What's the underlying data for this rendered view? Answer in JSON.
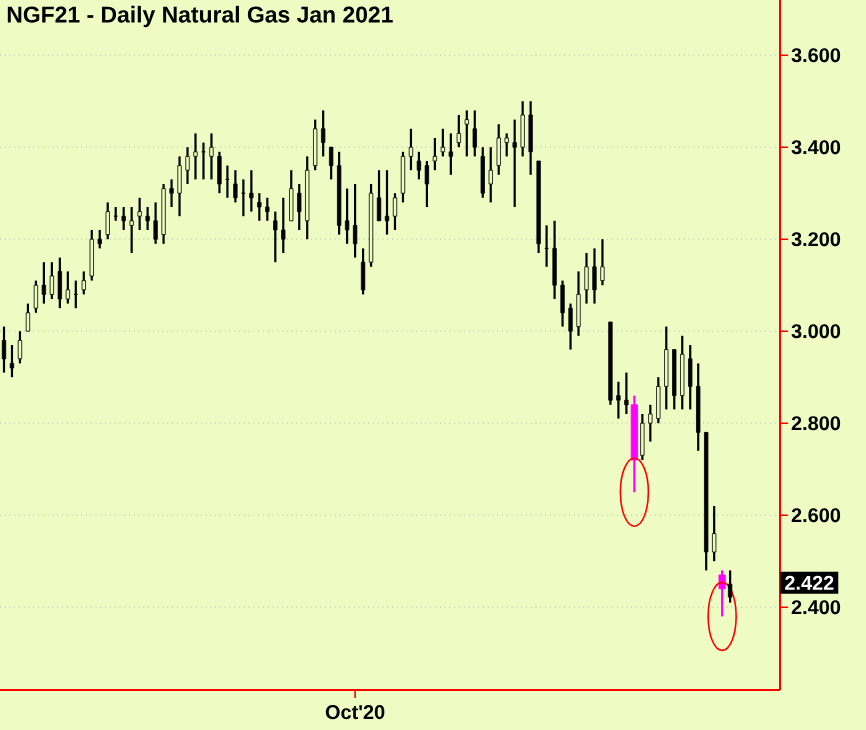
{
  "chart_data": {
    "type": "candlestick",
    "title": "NGF21 - Daily  Natural Gas Jan 2021",
    "categories": [
      null,
      null,
      null,
      null,
      null,
      null,
      null,
      null,
      null,
      null,
      null,
      null,
      null,
      null,
      null,
      null,
      null,
      null,
      null,
      null,
      null,
      null,
      null,
      null,
      null,
      null,
      null,
      null,
      null,
      null,
      null,
      null,
      null,
      null,
      null,
      null,
      null,
      null,
      null,
      null,
      null,
      null,
      null,
      null,
      "Oct'20",
      null,
      null,
      null,
      null,
      null,
      null,
      null,
      null,
      null,
      null,
      null,
      null,
      null,
      null,
      null,
      null,
      null,
      null,
      null,
      null,
      null,
      null,
      null,
      null,
      null,
      null,
      null,
      null,
      null,
      null,
      null,
      null,
      null,
      null,
      null,
      null,
      null,
      null,
      null,
      null,
      null,
      null,
      null,
      null,
      null,
      null,
      null
    ],
    "ohlc": [
      [
        2.98,
        3.01,
        2.91,
        2.94
      ],
      [
        2.93,
        2.97,
        2.9,
        2.92
      ],
      [
        2.94,
        3.0,
        2.93,
        2.98
      ],
      [
        3.0,
        3.06,
        3.0,
        3.04
      ],
      [
        3.05,
        3.11,
        3.04,
        3.1
      ],
      [
        3.1,
        3.15,
        3.06,
        3.08
      ],
      [
        3.08,
        3.15,
        3.07,
        3.12
      ],
      [
        3.13,
        3.16,
        3.05,
        3.07
      ],
      [
        3.07,
        3.13,
        3.06,
        3.09
      ],
      [
        3.08,
        3.11,
        3.05,
        3.08
      ],
      [
        3.09,
        3.13,
        3.08,
        3.11
      ],
      [
        3.12,
        3.22,
        3.11,
        3.2
      ],
      [
        3.2,
        3.22,
        3.18,
        3.19
      ],
      [
        3.21,
        3.28,
        3.2,
        3.26
      ],
      [
        3.25,
        3.27,
        3.24,
        3.25
      ],
      [
        3.25,
        3.27,
        3.22,
        3.24
      ],
      [
        3.23,
        3.27,
        3.17,
        3.24
      ],
      [
        3.25,
        3.29,
        3.22,
        3.26
      ],
      [
        3.25,
        3.27,
        3.22,
        3.24
      ],
      [
        3.24,
        3.28,
        3.19,
        3.2
      ],
      [
        3.21,
        3.32,
        3.19,
        3.31
      ],
      [
        3.31,
        3.33,
        3.27,
        3.3
      ],
      [
        3.3,
        3.38,
        3.25,
        3.36
      ],
      [
        3.35,
        3.4,
        3.32,
        3.38
      ],
      [
        3.38,
        3.43,
        3.33,
        3.39
      ],
      [
        3.39,
        3.41,
        3.33,
        3.39
      ],
      [
        3.38,
        3.43,
        3.33,
        3.4
      ],
      [
        3.38,
        3.39,
        3.3,
        3.32
      ],
      [
        3.33,
        3.36,
        3.29,
        3.33
      ],
      [
        3.32,
        3.35,
        3.28,
        3.29
      ],
      [
        3.3,
        3.33,
        3.25,
        3.3
      ],
      [
        3.3,
        3.35,
        3.26,
        3.29
      ],
      [
        3.28,
        3.3,
        3.24,
        3.27
      ],
      [
        3.27,
        3.29,
        3.24,
        3.26
      ],
      [
        3.24,
        3.26,
        3.15,
        3.22
      ],
      [
        3.22,
        3.29,
        3.17,
        3.2
      ],
      [
        3.24,
        3.35,
        3.24,
        3.31
      ],
      [
        3.3,
        3.32,
        3.22,
        3.26
      ],
      [
        3.24,
        3.38,
        3.2,
        3.35
      ],
      [
        3.36,
        3.46,
        3.35,
        3.44
      ],
      [
        3.44,
        3.48,
        3.38,
        3.41
      ],
      [
        3.4,
        3.4,
        3.33,
        3.36
      ],
      [
        3.36,
        3.39,
        3.21,
        3.23
      ],
      [
        3.24,
        3.31,
        3.19,
        3.22
      ],
      [
        3.23,
        3.32,
        3.16,
        3.19
      ],
      [
        3.15,
        3.18,
        3.08,
        3.09
      ],
      [
        3.15,
        3.32,
        3.14,
        3.3
      ],
      [
        3.29,
        3.35,
        3.24,
        3.24
      ],
      [
        3.25,
        3.35,
        3.21,
        3.24
      ],
      [
        3.25,
        3.3,
        3.22,
        3.29
      ],
      [
        3.3,
        3.39,
        3.28,
        3.38
      ],
      [
        3.38,
        3.44,
        3.35,
        3.4
      ],
      [
        3.37,
        3.39,
        3.33,
        3.35
      ],
      [
        3.36,
        3.37,
        3.27,
        3.32
      ],
      [
        3.37,
        3.42,
        3.35,
        3.38
      ],
      [
        3.39,
        3.44,
        3.38,
        3.4
      ],
      [
        3.39,
        3.43,
        3.34,
        3.38
      ],
      [
        3.41,
        3.47,
        3.4,
        3.43
      ],
      [
        3.45,
        3.48,
        3.38,
        3.46
      ],
      [
        3.44,
        3.48,
        3.38,
        3.4
      ],
      [
        3.38,
        3.4,
        3.29,
        3.3
      ],
      [
        3.32,
        3.4,
        3.28,
        3.35
      ],
      [
        3.36,
        3.45,
        3.34,
        3.42
      ],
      [
        3.41,
        3.43,
        3.38,
        3.42
      ],
      [
        3.41,
        3.46,
        3.27,
        3.4
      ],
      [
        3.4,
        3.5,
        3.38,
        3.47
      ],
      [
        3.47,
        3.5,
        3.34,
        3.39
      ],
      [
        3.37,
        3.37,
        3.17,
        3.19
      ],
      [
        3.18,
        3.23,
        3.14,
        3.18
      ],
      [
        3.18,
        3.24,
        3.07,
        3.1
      ],
      [
        3.1,
        3.11,
        3.01,
        3.04
      ],
      [
        3.05,
        3.06,
        2.96,
        3.0
      ],
      [
        3.01,
        3.13,
        2.99,
        3.08
      ],
      [
        3.09,
        3.17,
        3.06,
        3.14
      ],
      [
        3.14,
        3.18,
        3.06,
        3.09
      ],
      [
        3.11,
        3.2,
        3.1,
        3.14
      ],
      [
        3.02,
        3.02,
        2.84,
        2.85
      ],
      [
        2.86,
        2.89,
        2.81,
        2.85
      ],
      [
        2.85,
        2.91,
        2.82,
        2.84
      ],
      [
        2.84,
        2.86,
        2.65,
        2.72
      ],
      [
        2.73,
        2.82,
        2.72,
        2.8
      ],
      [
        2.8,
        2.84,
        2.76,
        2.82
      ],
      [
        2.81,
        2.9,
        2.8,
        2.88
      ],
      [
        2.88,
        3.01,
        2.83,
        2.96
      ],
      [
        2.96,
        2.96,
        2.83,
        2.86
      ],
      [
        2.86,
        2.99,
        2.83,
        2.95
      ],
      [
        2.94,
        2.97,
        2.83,
        2.88
      ],
      [
        2.88,
        2.93,
        2.74,
        2.78
      ],
      [
        2.78,
        2.78,
        2.48,
        2.52
      ],
      [
        2.52,
        2.62,
        2.5,
        2.56
      ],
      [
        2.47,
        2.48,
        2.38,
        2.44
      ],
      [
        2.45,
        2.48,
        2.41,
        2.422
      ]
    ],
    "colors": [
      "#000000",
      "#000000",
      "#000000",
      "#000000",
      "#000000",
      "#000000",
      "#000000",
      "#000000",
      "#000000",
      "#000000",
      "#000000",
      "#000000",
      "#000000",
      "#000000",
      "#000000",
      "#000000",
      "#000000",
      "#000000",
      "#000000",
      "#000000",
      "#000000",
      "#000000",
      "#000000",
      "#000000",
      "#000000",
      "#000000",
      "#000000",
      "#000000",
      "#000000",
      "#000000",
      "#000000",
      "#000000",
      "#000000",
      "#000000",
      "#000000",
      "#000000",
      "#000000",
      "#000000",
      "#000000",
      "#000000",
      "#000000",
      "#000000",
      "#000000",
      "#000000",
      "#000000",
      "#000000",
      "#000000",
      "#000000",
      "#000000",
      "#000000",
      "#000000",
      "#000000",
      "#000000",
      "#000000",
      "#000000",
      "#000000",
      "#000000",
      "#000000",
      "#000000",
      "#000000",
      "#000000",
      "#000000",
      "#000000",
      "#000000",
      "#000000",
      "#000000",
      "#000000",
      "#000000",
      "#000000",
      "#000000",
      "#000000",
      "#000000",
      "#000000",
      "#000000",
      "#000000",
      "#000000",
      "#000000",
      "#000000",
      "#000000",
      "#ff00ff",
      "#000000",
      "#000000",
      "#000000",
      "#000000",
      "#000000",
      "#000000",
      "#000000",
      "#000000",
      "#000000",
      "#000000",
      "#ff00ff",
      "#000000"
    ],
    "ylim": [
      2.22,
      3.72
    ],
    "yticks": [
      {
        "value": 2.4,
        "label": "2.400"
      },
      {
        "value": 2.6,
        "label": "2.600"
      },
      {
        "value": 2.8,
        "label": "2.800"
      },
      {
        "value": 3.0,
        "label": "3.000"
      },
      {
        "value": 3.2,
        "label": "3.200"
      },
      {
        "value": 3.4,
        "label": "3.400"
      },
      {
        "value": 3.6,
        "label": "3.600"
      }
    ],
    "grid": "y",
    "annotations": [
      "2.422"
    ]
  }
}
